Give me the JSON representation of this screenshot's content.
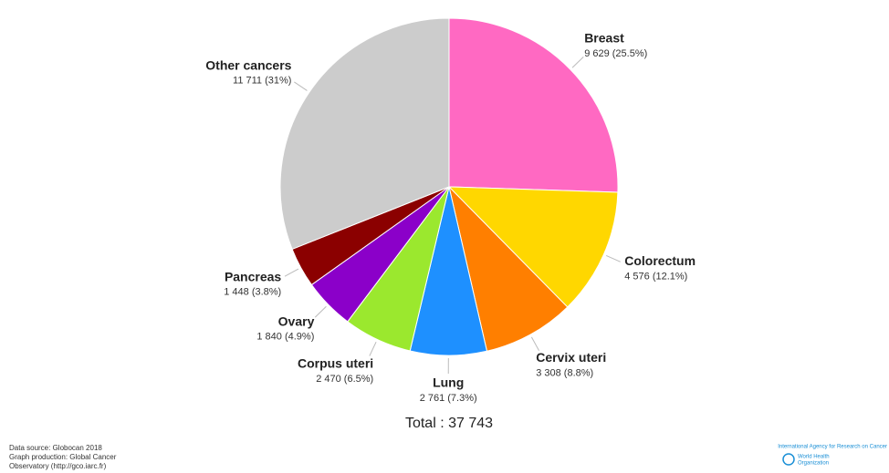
{
  "chart_data": {
    "type": "pie",
    "categories": [
      "Breast",
      "Colorectum",
      "Cervix uteri",
      "Lung",
      "Corpus uteri",
      "Ovary",
      "Pancreas",
      "Other cancers"
    ],
    "values": [
      9629,
      4576,
      3308,
      2761,
      2470,
      1840,
      1448,
      11711
    ],
    "value_labels": [
      "9 629 (25.5%)",
      "4 576 (12.1%)",
      "3 308 (8.8%)",
      "2 761 (7.3%)",
      "2 470 (6.5%)",
      "1 840 (4.9%)",
      "1 448 (3.8%)",
      "11 711 (31%)"
    ],
    "colors": [
      "#ff69c2",
      "#ffd700",
      "#ff7f00",
      "#1e90ff",
      "#9be82e",
      "#8b00c9",
      "#8b0000",
      "#cccccc"
    ],
    "total_label": "Total : 37 743"
  },
  "footer": {
    "lines": [
      "Data source: Globocan 2018",
      "Graph production: Global Cancer",
      "Observatory (http://gco.iarc.fr)"
    ]
  },
  "logo": {
    "agency": "International Agency for Research on Cancer",
    "who": [
      "World Health",
      "Organization"
    ]
  }
}
